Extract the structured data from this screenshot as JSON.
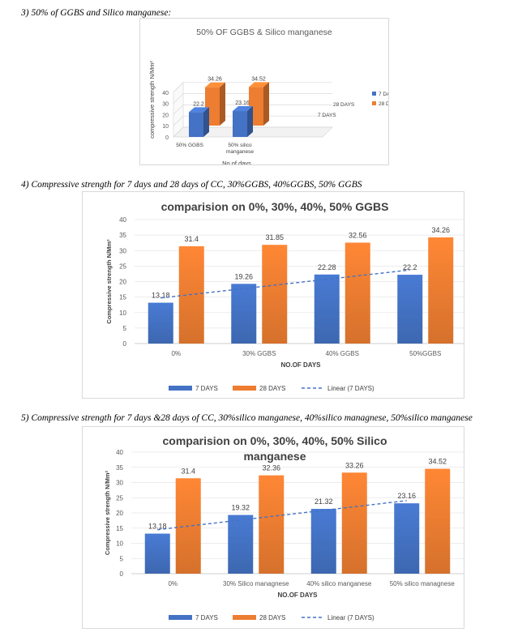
{
  "headings": [
    "3)    50% of GGBS and Silico manganese:",
    "4)    Compressive strength for 7 days and 28 days of CC, 30%GGBS, 40%GGBS, 50% GGBS",
    "5)    Compressive strength for 7 days &28 days of CC, 30%silico manganese, 40%silico managnese, 50%silico    manganese"
  ],
  "chart_data": [
    {
      "type": "bar",
      "style": "3d-clustered",
      "title": "50% OF GGBS & Silico manganese",
      "xlabel": "No.of days",
      "ylabel": "compressive strength N/Mm²",
      "categories": [
        "50% GGBS",
        "50% silico manganese"
      ],
      "depth_labels": [
        "7 DAYS",
        "28 DAYS"
      ],
      "ylim": [
        0,
        40
      ],
      "yticks": [
        0,
        10,
        20,
        30,
        40
      ],
      "series": [
        {
          "name": "7 DAYS",
          "values": [
            22.2,
            23.16
          ],
          "color": "#4472c4"
        },
        {
          "name": "28 DAYS",
          "values": [
            34.26,
            34.52
          ],
          "color": "#ed7d31"
        }
      ],
      "legend_position": "right",
      "grid": true
    },
    {
      "type": "bar",
      "title": "comparision on 0%, 30%, 40%, 50% GGBS",
      "xlabel": "NO.OF  DAYS",
      "ylabel": "Compressive strength N/Mm²",
      "categories": [
        "0%",
        "30% GGBS",
        "40% GGBS",
        "50%GGBS"
      ],
      "ylim": [
        0,
        40
      ],
      "yticks": [
        0,
        5,
        10,
        15,
        20,
        25,
        30,
        35,
        40
      ],
      "series": [
        {
          "name": "7 DAYS",
          "values": [
            13.18,
            19.26,
            22.28,
            22.2
          ],
          "color": "#4472c4"
        },
        {
          "name": "28 DAYS",
          "values": [
            31.4,
            31.85,
            32.56,
            34.26
          ],
          "color": "#ed7d31"
        }
      ],
      "trendline": {
        "name": "Linear (7 DAYS)",
        "of_series": "7 DAYS",
        "color": "#4472c4"
      },
      "legend_position": "bottom",
      "grid": true
    },
    {
      "type": "bar",
      "title": "comparision on 0%, 30%, 40%, 50% Silico manganese",
      "xlabel": "NO.OF  DAYS",
      "ylabel": "Compressive strength N/Mm²",
      "categories": [
        "0%",
        "30% Silico managnese",
        "40% silico manganese",
        "50% silico managnese"
      ],
      "ylim": [
        0,
        40
      ],
      "yticks": [
        0,
        5,
        10,
        15,
        20,
        25,
        30,
        35,
        40
      ],
      "series": [
        {
          "name": "7 DAYS",
          "values": [
            13.18,
            19.32,
            21.32,
            23.16
          ],
          "color": "#4472c4"
        },
        {
          "name": "28 DAYS",
          "values": [
            31.4,
            32.36,
            33.26,
            34.52
          ],
          "color": "#ed7d31"
        }
      ],
      "trendline": {
        "name": "Linear (7 DAYS)",
        "of_series": "7 DAYS",
        "color": "#4472c4"
      },
      "legend_position": "bottom",
      "grid": true
    }
  ]
}
